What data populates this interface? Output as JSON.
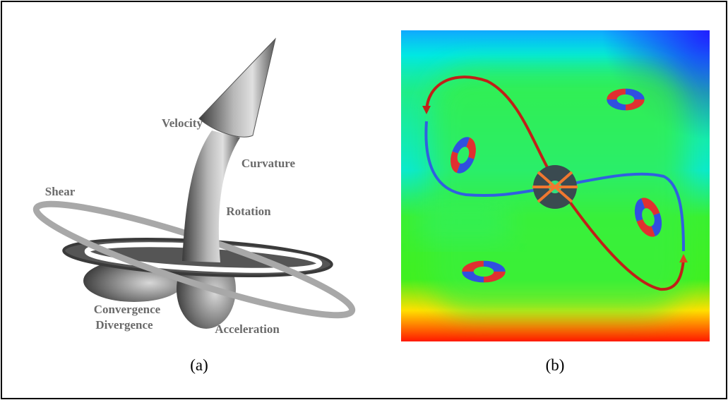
{
  "figure": {
    "panel_a": {
      "labels": [
        "Velocity",
        "Curvature",
        "Shear",
        "Rotation",
        "Convergence",
        "Divergence",
        "Acceleration"
      ]
    },
    "captions": [
      "(a)",
      "(b)"
    ]
  }
}
